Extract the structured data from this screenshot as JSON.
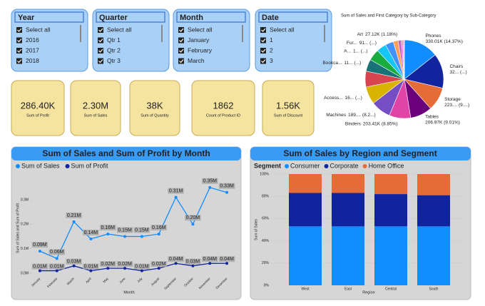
{
  "slicers": [
    {
      "title": "Year",
      "items": [
        "Select all",
        "2016",
        "2017",
        "2018"
      ]
    },
    {
      "title": "Quarter",
      "items": [
        "Select all",
        "Qtr 1",
        "Qtr 2",
        "Qtr 3"
      ]
    },
    {
      "title": "Month",
      "items": [
        "Select all",
        "January",
        "February",
        "March"
      ]
    },
    {
      "title": "Date",
      "items": [
        "Select all",
        "1",
        "2",
        "3"
      ]
    }
  ],
  "cards": [
    {
      "value": "286.40K",
      "label": "Sum of Profit"
    },
    {
      "value": "2.30M",
      "label": "Sum of Sales"
    },
    {
      "value": "38K",
      "label": "Sum of Quantity"
    },
    {
      "value": "1862",
      "label": "Count of Product ID"
    },
    {
      "value": "1.56K",
      "label": "Sum of Discount"
    }
  ],
  "chart_data": [
    {
      "type": "pie",
      "title": "Sum of Sales and First Category by Sub-Category",
      "categories": [
        "Phones",
        "Chairs",
        "Storage",
        "Tables",
        "Binders",
        "Machines",
        "Access...",
        null,
        "Bookca...",
        "A...",
        "Fur...",
        null,
        null,
        "Art",
        null,
        null,
        null
      ],
      "values": [
        330.01,
        328.45,
        223.84,
        206.97,
        203.41,
        189.24,
        167.38,
        149.53,
        114.88,
        107.53,
        91.71,
        78.48,
        46.67,
        27.12,
        16.48,
        12.49,
        3.02
      ],
      "value_labels": [
        "330.01K (14.37%)",
        "32... (...)",
        "223.... (9....)",
        "206.97K (9.01%)",
        "203.41K (8.85%)",
        "189.... (8.2...)",
        "16... (...)",
        null,
        "11... (...)",
        "1... (...)",
        "91... (...)",
        null,
        null,
        "27.12K (1.18%)",
        null,
        null,
        null
      ],
      "colors": [
        "#118DFF",
        "#12239E",
        "#E66C37",
        "#6B007B",
        "#E044A7",
        "#744EC2",
        "#D9B300",
        "#D64550",
        "#197278",
        "#1AAB40",
        "#15C6F4",
        "#4092FF",
        "#FFA058",
        "#BE5DC9",
        "#F472D0",
        "#B5A1FF",
        "#C4A200"
      ]
    },
    {
      "type": "line",
      "title": "Sum of Sales and Sum of Profit by Month",
      "x_label": "Month",
      "y_label": "Sum of Sales and Sum of Profit",
      "categories": [
        "January",
        "February",
        "March",
        "April",
        "May",
        "June",
        "July",
        "August",
        "September",
        "October",
        "November",
        "December"
      ],
      "series": [
        {
          "name": "Sum of Sales",
          "color": "#118DFF",
          "values": [
            0.09,
            0.06,
            0.21,
            0.14,
            0.16,
            0.15,
            0.15,
            0.16,
            0.31,
            0.2,
            0.35,
            0.33
          ],
          "value_labels": [
            "0.09M",
            "0.06M",
            "0.21M",
            "0.14M",
            "0.16M",
            "0.15M",
            "0.15M",
            "0.16M",
            "0.31M",
            "0.20M",
            "0.35M",
            "0.33M"
          ]
        },
        {
          "name": "Sum of Profit",
          "color": "#12239E",
          "values": [
            0.01,
            0.01,
            0.03,
            0.01,
            0.02,
            0.02,
            0.01,
            0.02,
            0.04,
            0.03,
            0.04,
            0.04
          ],
          "value_labels": [
            "0.01M",
            "0.01M",
            "0.03M",
            "0.01M",
            "0.02M",
            "0.02M",
            "0.01M",
            "0.02M",
            "0.04M",
            "0.03M",
            "0.04M",
            "0.04M"
          ]
        }
      ],
      "ylim": [
        0,
        0.37
      ],
      "yticks": [
        {
          "value": 0,
          "label": "0.0M"
        },
        {
          "value": 0.1,
          "label": "0.1M"
        },
        {
          "value": 0.2,
          "label": "0.2M"
        },
        {
          "value": 0.3,
          "label": "0.3M"
        }
      ]
    },
    {
      "type": "stacked_bar",
      "title": "Sum of Sales by Region and Segment",
      "x_label": "Region",
      "y_label": "Sum of Sales",
      "legend_title": "Segment",
      "categories": [
        "West",
        "East",
        "Central",
        "South"
      ],
      "series": [
        {
          "name": "Consumer",
          "color": "#118DFF",
          "values": [
            53,
            53,
            53,
            53
          ]
        },
        {
          "name": "Corporate",
          "color": "#12239E",
          "values": [
            30,
            30,
            29,
            28
          ]
        },
        {
          "name": "Home Office",
          "color": "#E66C37",
          "values": [
            17,
            17,
            18,
            19
          ]
        }
      ],
      "ylim": [
        0,
        100
      ],
      "yticks": [
        {
          "value": 0,
          "label": "0%"
        },
        {
          "value": 20,
          "label": "20%"
        },
        {
          "value": 40,
          "label": "40%"
        },
        {
          "value": 60,
          "label": "60%"
        },
        {
          "value": 80,
          "label": "80%"
        },
        {
          "value": 100,
          "label": "100%"
        }
      ],
      "grid": true
    }
  ]
}
